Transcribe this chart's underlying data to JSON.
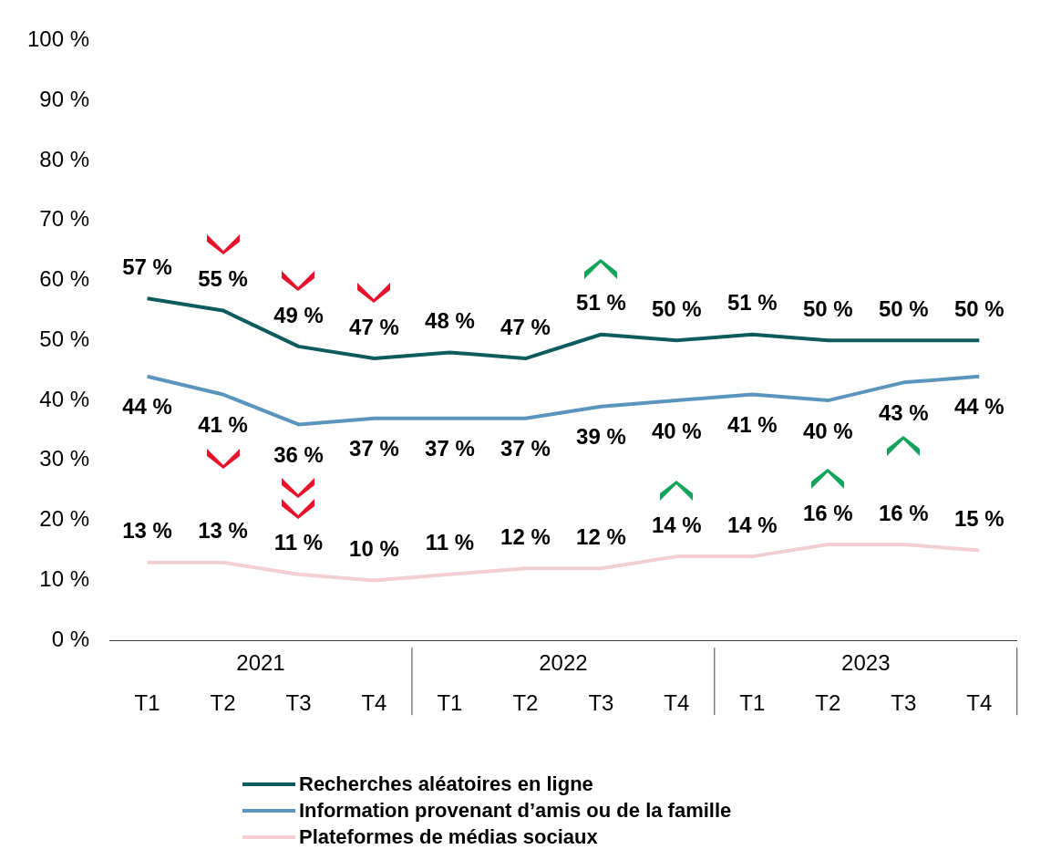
{
  "chart_data": {
    "type": "line",
    "categories": [
      "T1",
      "T2",
      "T3",
      "T4",
      "T1",
      "T2",
      "T3",
      "T4",
      "T1",
      "T2",
      "T3",
      "T4"
    ],
    "annotations": [
      "2021",
      "2022",
      "2023"
    ],
    "ylim": [
      0,
      100
    ],
    "yticks": [
      {
        "value": 0,
        "label": "0 %"
      },
      {
        "value": 10,
        "label": "10 %"
      },
      {
        "value": 20,
        "label": "20 %"
      },
      {
        "value": 30,
        "label": "30 %"
      },
      {
        "value": 40,
        "label": "40 %"
      },
      {
        "value": 50,
        "label": "50 %"
      },
      {
        "value": 60,
        "label": "60 %"
      },
      {
        "value": 70,
        "label": "70 %"
      },
      {
        "value": 80,
        "label": "80 %"
      },
      {
        "value": 90,
        "label": "90 %"
      },
      {
        "value": 100,
        "label": "100 %"
      }
    ],
    "legend": "bottom",
    "marker": "none",
    "series": [
      {
        "name": "Recherches aléatoires en ligne",
        "color": "#0e5b5d",
        "values": [
          57,
          55,
          49,
          47,
          48,
          47,
          51,
          50,
          51,
          50,
          50,
          50
        ],
        "value_labels": [
          "57 %",
          "55 %",
          "49 %",
          "47 %",
          "48 %",
          "47 %",
          "51 %",
          "50 %",
          "51 %",
          "50 %",
          "50 %",
          "50 %"
        ]
      },
      {
        "name": "Information provenant d’amis ou de la famille",
        "color": "#5b95bd",
        "values": [
          44,
          41,
          36,
          37,
          37,
          37,
          39,
          40,
          41,
          40,
          43,
          44
        ],
        "value_labels": [
          "44 %",
          "41 %",
          "36 %",
          "37 %",
          "37 %",
          "37 %",
          "39 %",
          "40 %",
          "41 %",
          "40 %",
          "43 %",
          "44 %"
        ]
      },
      {
        "name": "Plateformes de médias sociaux",
        "color": "#f2cfd3",
        "values": [
          13,
          13,
          11,
          10,
          11,
          12,
          12,
          14,
          14,
          16,
          16,
          15
        ],
        "value_labels": [
          "13 %",
          "13 %",
          "11 %",
          "10 %",
          "11 %",
          "12 %",
          "12 %",
          "14 %",
          "14 %",
          "16 %",
          "16 %",
          "15 %"
        ]
      }
    ]
  }
}
